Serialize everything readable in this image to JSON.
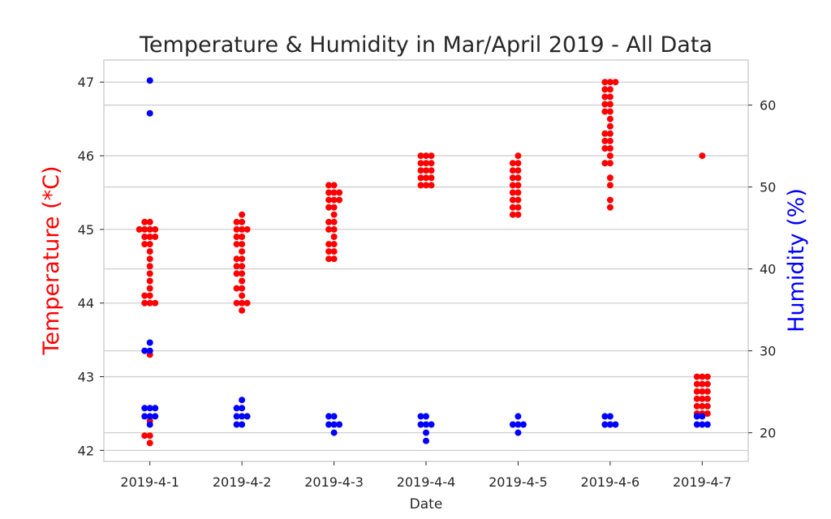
{
  "chart_data": {
    "type": "scatter",
    "title": "Temperature & Humidity in Mar/April 2019 - All Data",
    "xlabel": "Date",
    "ylabel_left": "Temperature (*C)",
    "ylabel_right": "Humidity (%)",
    "categories": [
      "2019-4-1",
      "2019-4-2",
      "2019-4-3",
      "2019-4-4",
      "2019-4-5",
      "2019-4-6",
      "2019-4-7"
    ],
    "ylim_left": [
      41.85,
      47.3
    ],
    "ylim_right": [
      16.5,
      65.5
    ],
    "yticks_left": [
      42,
      43,
      44,
      45,
      46,
      47
    ],
    "yticks_right": [
      20,
      30,
      40,
      50,
      60
    ],
    "grid": true,
    "colors": {
      "temperature": "#ff0000",
      "humidity": "#0000ff",
      "left_label": "#ff0000",
      "right_label": "#0000ff"
    },
    "series": [
      {
        "name": "Temperature",
        "axis": "left",
        "color": "#ff0000",
        "values": [
          [
            45.1,
            45.1,
            45.0,
            45.0,
            45.0,
            45.0,
            44.9,
            44.9,
            44.9,
            44.8,
            44.8,
            44.7,
            44.6,
            44.5,
            44.4,
            44.3,
            44.2,
            44.1,
            44.1,
            44.0,
            44.0,
            44.0,
            43.3,
            42.4,
            42.2,
            42.2,
            42.1
          ],
          [
            45.2,
            45.1,
            45.1,
            45.0,
            45.0,
            45.0,
            44.9,
            44.9,
            44.8,
            44.8,
            44.7,
            44.6,
            44.6,
            44.5,
            44.5,
            44.4,
            44.4,
            44.3,
            44.2,
            44.2,
            44.1,
            44.0,
            44.0,
            44.0,
            43.9
          ],
          [
            45.6,
            45.6,
            45.5,
            45.5,
            45.5,
            45.4,
            45.4,
            45.4,
            45.3,
            45.3,
            45.2,
            45.1,
            45.1,
            45.0,
            45.0,
            44.9,
            44.8,
            44.8,
            44.7,
            44.7,
            44.6,
            44.6
          ],
          [
            46.0,
            46.0,
            46.0,
            45.9,
            45.9,
            45.9,
            45.8,
            45.8,
            45.8,
            45.7,
            45.7,
            45.7,
            45.6,
            45.6,
            45.6
          ],
          [
            46.0,
            45.9,
            45.9,
            45.8,
            45.8,
            45.7,
            45.7,
            45.6,
            45.6,
            45.5,
            45.5,
            45.4,
            45.4,
            45.3,
            45.3,
            45.2,
            45.2
          ],
          [
            47.0,
            47.0,
            47.0,
            46.9,
            46.9,
            46.8,
            46.8,
            46.7,
            46.7,
            46.6,
            46.6,
            46.5,
            46.4,
            46.3,
            46.3,
            46.2,
            46.2,
            46.1,
            46.1,
            46.0,
            45.9,
            45.9,
            45.7,
            45.6,
            45.4,
            45.3
          ],
          [
            46.0,
            43.0,
            43.0,
            43.0,
            42.9,
            42.9,
            42.9,
            42.8,
            42.8,
            42.8,
            42.7,
            42.7,
            42.7,
            42.6,
            42.6,
            42.6,
            42.5,
            42.5,
            42.5
          ]
        ]
      },
      {
        "name": "Humidity",
        "axis": "right",
        "color": "#0000ff",
        "values": [
          [
            63,
            59,
            31,
            30,
            30,
            23,
            23,
            23,
            22,
            22,
            22,
            21
          ],
          [
            24,
            23,
            23,
            22,
            22,
            22,
            21,
            21
          ],
          [
            22,
            22,
            21,
            21,
            21,
            20
          ],
          [
            22,
            22,
            21,
            21,
            21,
            20,
            19
          ],
          [
            22,
            21,
            21,
            21,
            20
          ],
          [
            22,
            22,
            21,
            21,
            21
          ],
          [
            22,
            22,
            21,
            21,
            21
          ]
        ]
      }
    ]
  }
}
